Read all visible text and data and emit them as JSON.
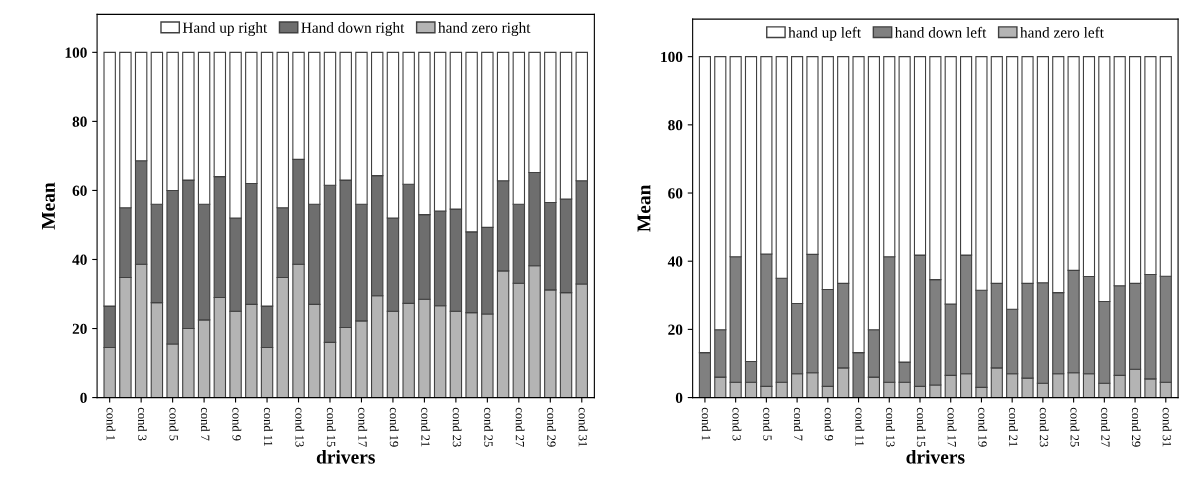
{
  "chart_data": [
    {
      "type": "bar",
      "stacked": true,
      "xlabel": "drivers",
      "ylabel": "Mean",
      "ylim": [
        0,
        111
      ],
      "yticks": [
        0,
        20,
        40,
        60,
        80,
        100
      ],
      "grid": false,
      "legend": "top",
      "categories": [
        "cond 1",
        null,
        "cond 3",
        null,
        "cond 5",
        null,
        "cond 7",
        null,
        "cond 9",
        null,
        "cond 11",
        null,
        "cond 13",
        null,
        "cond 15",
        null,
        "cond 17",
        null,
        "cond 19",
        null,
        "cond 21",
        null,
        "cond 23",
        null,
        "cond 25",
        null,
        "cond 27",
        null,
        "cond 29",
        null,
        "cond 31"
      ],
      "series": [
        {
          "name": "hand zero right",
          "color": "#b4b4b4",
          "values": [
            14.5,
            34.8,
            38.6,
            27.5,
            15.5,
            20,
            22.5,
            29,
            25,
            27,
            14.5,
            34.8,
            38.6,
            27,
            16,
            20.3,
            22.2,
            29.5,
            25,
            27.3,
            28.5,
            26.6,
            25,
            24.6,
            24.2,
            36.7,
            33.1,
            38.2,
            31.2,
            30.4,
            32.9
          ]
        },
        {
          "name": "Hand down right",
          "color": "#6e6e6e",
          "values": [
            12,
            20.2,
            30,
            28.5,
            44.5,
            43,
            33.5,
            35,
            27,
            35,
            12,
            20.2,
            30.4,
            29,
            45.5,
            42.7,
            33.8,
            34.8,
            27,
            34.5,
            24.5,
            27.4,
            29.6,
            23.4,
            25.1,
            26.1,
            22.9,
            27,
            25.3,
            27.1,
            29.9
          ]
        },
        {
          "name": "Hand up right",
          "color": "#ffffff",
          "values": [
            73.5,
            45,
            31.4,
            44,
            40,
            37,
            44,
            36,
            48,
            38,
            73.5,
            45,
            31,
            44,
            38.5,
            37,
            44,
            35.7,
            48,
            38.2,
            47,
            46,
            45.4,
            52,
            50.7,
            37.2,
            44,
            34.8,
            43.5,
            42.5,
            37.2
          ]
        }
      ]
    },
    {
      "type": "bar",
      "stacked": true,
      "xlabel": "drivers",
      "ylabel": "Mean",
      "ylim": [
        0,
        111
      ],
      "yticks": [
        0,
        20,
        40,
        60,
        80,
        100
      ],
      "grid": false,
      "legend": "top",
      "categories": [
        "cond 1",
        null,
        "cond 3",
        null,
        "cond 5",
        null,
        "cond 7",
        null,
        "cond 9",
        null,
        "cond 11",
        null,
        "cond 13",
        null,
        "cond 15",
        null,
        "cond 17",
        null,
        "cond 19",
        null,
        "cond 21",
        null,
        "cond 23",
        null,
        "cond 25",
        null,
        "cond 27",
        null,
        "cond 29",
        null,
        "cond 31"
      ],
      "series": [
        {
          "name": "hand zero left",
          "color": "#b4b4b4",
          "values": [
            0,
            6,
            4.5,
            4.5,
            3.3,
            4.5,
            7,
            7.3,
            3.3,
            8.7,
            0,
            6,
            4.5,
            4.5,
            3.3,
            3.7,
            6.5,
            7,
            3,
            8.7,
            7,
            5.7,
            4.2,
            7,
            7.3,
            7,
            4.2,
            6.5,
            8.3,
            5.5,
            4.5
          ]
        },
        {
          "name": "hand down left",
          "color": "#808080",
          "values": [
            13.2,
            13.9,
            36.8,
            6.1,
            38.8,
            30.5,
            20.6,
            34.7,
            28.4,
            24.8,
            13.2,
            13.9,
            36.8,
            5.9,
            38.5,
            30.9,
            20.9,
            34.8,
            28.5,
            24.8,
            18.9,
            27.8,
            29.5,
            23.8,
            30,
            28.5,
            24,
            26.3,
            25.2,
            30.6,
            31.1
          ]
        },
        {
          "name": "hand up left",
          "color": "#ffffff",
          "values": [
            86.8,
            80.1,
            58.7,
            89.4,
            57.9,
            65,
            72.4,
            58,
            68.3,
            66.5,
            86.8,
            80.1,
            58.7,
            89.6,
            58.2,
            65.4,
            72.6,
            58.2,
            68.5,
            66.5,
            74.1,
            66.5,
            66.3,
            69.2,
            62.7,
            64.5,
            71.8,
            67.2,
            66.5,
            63.9,
            64.4
          ]
        }
      ]
    }
  ]
}
